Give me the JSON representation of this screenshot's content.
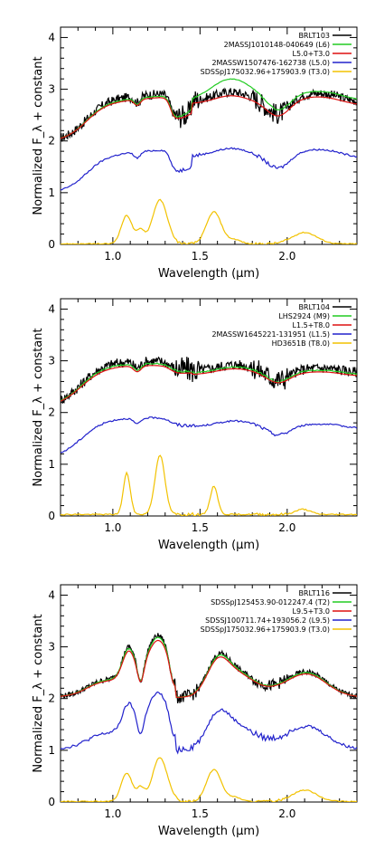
{
  "chart_data": [
    {
      "type": "line",
      "xlabel": "Wavelength (μm)",
      "ylabel": "Normalized F_λ + constant",
      "xlim": [
        0.7,
        2.4
      ],
      "ylim": [
        0,
        4.2
      ],
      "xticks": [
        "1.0",
        "1.5",
        "2.0"
      ],
      "yticks": [
        "0",
        "1",
        "2",
        "3",
        "4"
      ],
      "legend_position": "top-right",
      "series": [
        {
          "name": "BRLT103",
          "color": "#000000",
          "offset": 2.0,
          "profile": "L",
          "noise": 0.09,
          "scale": 1.05
        },
        {
          "name": "2MASSJ1010148-040649 (L6)",
          "color": "#22cc22",
          "offset": 2.0,
          "profile": "L",
          "noise": 0.005,
          "scale": 1.0,
          "hboost": 0.22
        },
        {
          "name": "L5.0+T3.0",
          "color": "#dd1111",
          "offset": 2.0,
          "profile": "L",
          "noise": 0.0,
          "scale": 0.97
        },
        {
          "name": "2MASSW1507476-162738 (L5.0)",
          "color": "#2222cc",
          "offset": 1.0,
          "profile": "L",
          "noise": 0.015,
          "scale": 0.95
        },
        {
          "name": "SDSSpJ175032.96+175903.9 (T3.0)",
          "color": "#f2c200",
          "offset": 0.0,
          "profile": "T3",
          "noise": 0.01,
          "scale": 1.0
        }
      ]
    },
    {
      "type": "line",
      "xlabel": "Wavelength (μm)",
      "ylabel": "Normalized F_λ + constant",
      "xlim": [
        0.7,
        2.4
      ],
      "ylim": [
        0,
        4.2
      ],
      "xticks": [
        "1.0",
        "1.5",
        "2.0"
      ],
      "yticks": [
        "0",
        "1",
        "2",
        "3",
        "4"
      ],
      "legend_position": "top-right",
      "series": [
        {
          "name": "BRLT104",
          "color": "#000000",
          "offset": 2.0,
          "profile": "M",
          "noise": 0.1,
          "scale": 1.05
        },
        {
          "name": "LHS2924 (M9)",
          "color": "#22cc22",
          "offset": 2.0,
          "profile": "M",
          "noise": 0.01,
          "scale": 1.0
        },
        {
          "name": "L1.5+T8.0",
          "color": "#dd1111",
          "offset": 2.0,
          "profile": "M",
          "noise": 0.0,
          "scale": 0.96
        },
        {
          "name": "2MASSW1645221-131951 (L1.5)",
          "color": "#2222cc",
          "offset": 1.0,
          "profile": "M",
          "noise": 0.015,
          "scale": 0.95
        },
        {
          "name": "HD3651B (T8.0)",
          "color": "#f2c200",
          "offset": 0.0,
          "profile": "T8",
          "noise": 0.012,
          "scale": 1.0
        }
      ]
    },
    {
      "type": "line",
      "xlabel": "Wavelength (μm)",
      "ylabel": "Normalized F_λ + constant",
      "xlim": [
        0.7,
        2.4
      ],
      "ylim": [
        0,
        4.2
      ],
      "xticks": [
        "1.0",
        "1.5",
        "2.0"
      ],
      "yticks": [
        "0",
        "1",
        "2",
        "3",
        "4"
      ],
      "legend_position": "top-right",
      "series": [
        {
          "name": "BRLT116",
          "color": "#000000",
          "offset": 2.0,
          "profile": "LT",
          "noise": 0.05,
          "scale": 1.05
        },
        {
          "name": "SDSSpJ125453.90-012247.4 (T2)",
          "color": "#22cc22",
          "offset": 2.0,
          "profile": "LT",
          "noise": 0.005,
          "scale": 1.02
        },
        {
          "name": "L9.5+T3.0",
          "color": "#dd1111",
          "offset": 2.0,
          "profile": "LT",
          "noise": 0.0,
          "scale": 0.97
        },
        {
          "name": "SDSSJ100711.74+193056.2 (L9.5)",
          "color": "#2222cc",
          "offset": 1.0,
          "profile": "LT",
          "noise": 0.03,
          "scale": 0.95
        },
        {
          "name": "SDSSpJ175032.96+175903.9 (T3.0)",
          "color": "#f2c200",
          "offset": 0.0,
          "profile": "T3",
          "noise": 0.01,
          "scale": 1.0
        }
      ]
    }
  ]
}
